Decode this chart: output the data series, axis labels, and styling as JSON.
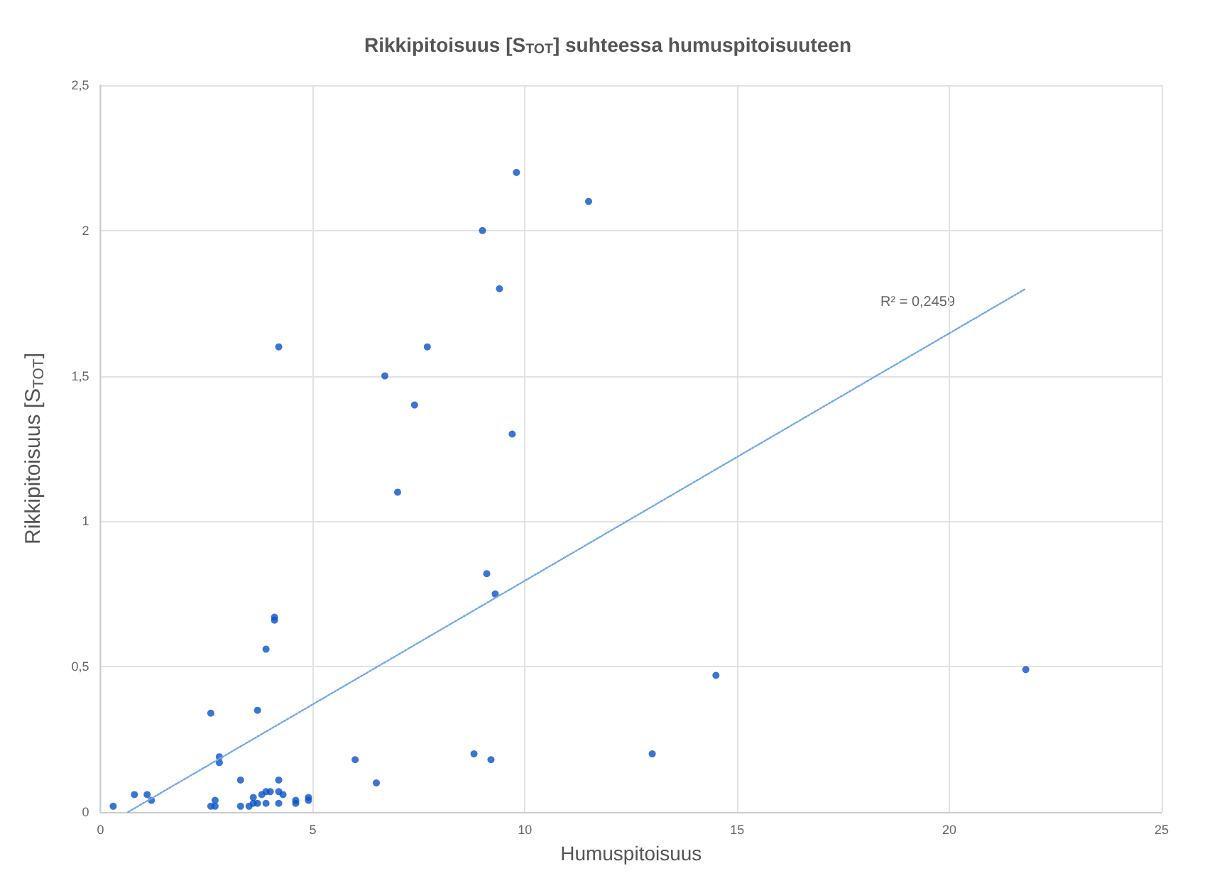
{
  "chart_data": {
    "type": "scatter",
    "title": "Rikkipitoisuus [S$_{TOT}$] suhteessa humuspitoisuuteen",
    "xlabel": "Humuspitoisuus",
    "ylabel": "Rikkipitoisuus [S$_{TOT}$]",
    "xlim": [
      0,
      25
    ],
    "xticks": [
      0,
      5,
      10,
      15,
      20,
      25
    ],
    "ylim": [
      0,
      2.5
    ],
    "yticks": [
      0,
      {
        "value": 0.5,
        "label": "0,5"
      },
      1,
      {
        "value": 1.5,
        "label": "1,5"
      },
      2,
      {
        "value": 2.5,
        "label": "2,5"
      }
    ],
    "grid": true,
    "marker": "circle",
    "annotations": [
      "R² = 0,2459"
    ],
    "series": [
      {
        "type": "scatter",
        "color": "#0a52c8",
        "x": [
          0.3,
          0.8,
          1.1,
          1.2,
          2.6,
          2.6,
          2.7,
          2.7,
          2.8,
          2.8,
          3.3,
          3.3,
          3.5,
          3.6,
          3.6,
          3.7,
          3.8,
          3.9,
          3.9,
          4.0,
          3.7,
          3.9,
          4.1,
          4.1,
          4.2,
          4.2,
          4.3,
          4.2,
          4.6,
          4.6,
          4.9,
          4.9,
          4.2,
          9.8,
          11.5,
          9.0,
          9.4,
          7.7,
          6.7,
          7.4,
          9.7,
          7.0,
          9.1,
          9.3,
          6.0,
          6.5,
          8.8,
          9.2,
          14.5,
          13.0,
          21.8
        ],
        "values": [
          0.02,
          0.06,
          0.06,
          0.04,
          0.34,
          0.02,
          0.02,
          0.04,
          0.19,
          0.17,
          0.11,
          0.02,
          0.02,
          0.05,
          0.03,
          0.03,
          0.06,
          0.03,
          0.07,
          0.07,
          0.35,
          0.56,
          0.67,
          0.66,
          0.11,
          0.07,
          0.06,
          0.03,
          0.04,
          0.03,
          0.05,
          0.04,
          1.6,
          2.2,
          2.1,
          2.0,
          1.8,
          1.6,
          1.5,
          1.4,
          1.3,
          1.1,
          0.82,
          0.75,
          0.18,
          0.1,
          0.2,
          0.18,
          0.47,
          0.2,
          0.49
        ]
      },
      {
        "type": "line",
        "color": "#6fa8e8",
        "line_style": "dotted",
        "marker": "none",
        "x": [
          0.65,
          21.8
        ],
        "values": [
          0,
          1.8
        ]
      }
    ]
  }
}
